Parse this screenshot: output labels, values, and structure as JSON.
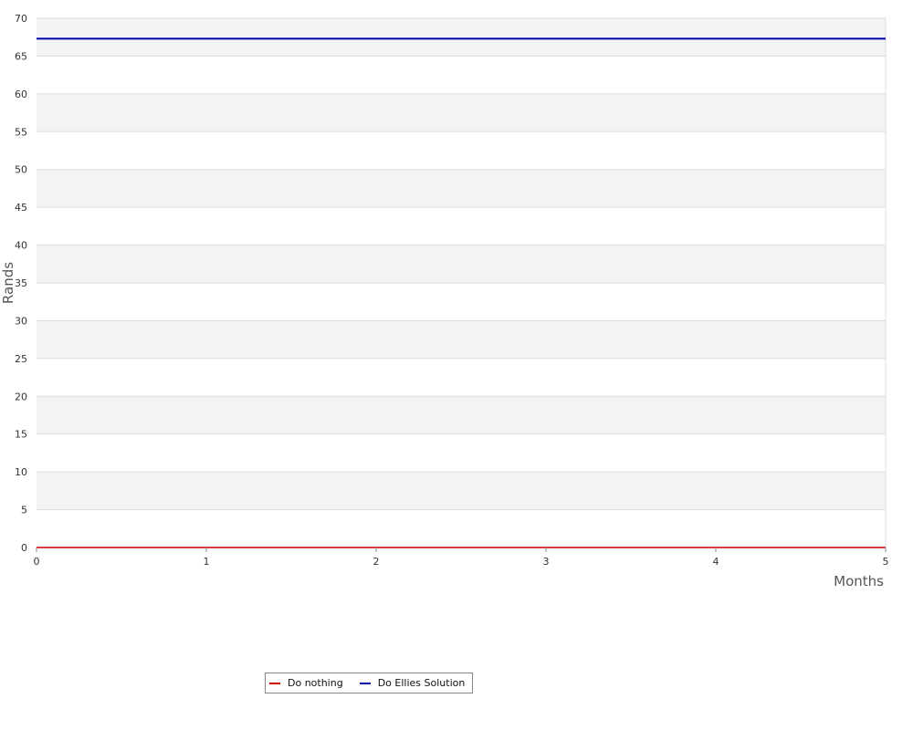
{
  "chart_data": {
    "type": "line",
    "title": "",
    "xlabel": "Months",
    "ylabel": "Rands",
    "x": [
      0,
      1,
      2,
      3,
      4,
      5
    ],
    "xlim": [
      0,
      5
    ],
    "ylim": [
      0,
      70
    ],
    "xticks": [
      0,
      1,
      2,
      3,
      4,
      5
    ],
    "yticks": [
      0,
      5,
      10,
      15,
      20,
      25,
      30,
      35,
      40,
      45,
      50,
      55,
      60,
      65,
      70
    ],
    "grid": "horizontal alternating bands",
    "legend_position": "bottom",
    "series": [
      {
        "name": "Do nothing",
        "color": "#cc0000",
        "values": [
          0,
          0,
          0,
          0,
          0,
          0
        ]
      },
      {
        "name": "Do Ellies Solution",
        "color": "#0000aa",
        "values": [
          67.3,
          67.3,
          67.3,
          67.3,
          67.3,
          67.3
        ]
      }
    ]
  }
}
